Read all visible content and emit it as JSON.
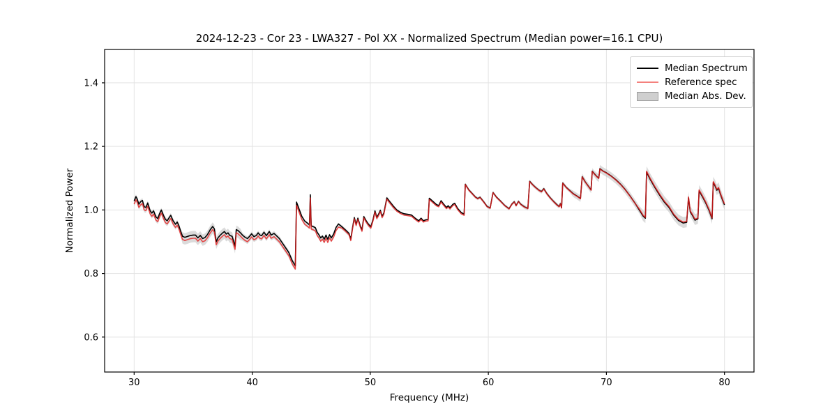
{
  "figure": {
    "title": "2024-12-23 - Cor 23 - LWA327 - Pol XX - Normalized Spectrum (Median power=16.1 CPU)",
    "xlabel": "Frequency (MHz)",
    "ylabel": "Normalized Power",
    "legend": [
      {
        "label": "Median Spectrum",
        "swatch": "line",
        "color": "#000000"
      },
      {
        "label": "Reference spec",
        "swatch": "line",
        "color": "#f4817d"
      },
      {
        "label": "Median Abs. Dev.",
        "swatch": "patch",
        "color": "#cfcfcf",
        "border": "#9e9e9e"
      }
    ]
  },
  "chart_data": {
    "type": "line",
    "title": "2024-12-23 - Cor 23 - LWA327 - Pol XX - Normalized Spectrum (Median power=16.1 CPU)",
    "xlabel": "Frequency (MHz)",
    "ylabel": "Normalized Power",
    "xlim": [
      27.5,
      82.5
    ],
    "ylim": [
      0.49,
      1.505
    ],
    "xticks": [
      30,
      40,
      50,
      60,
      70,
      80
    ],
    "xtick_labels": [
      "30",
      "40",
      "50",
      "60",
      "70",
      "80"
    ],
    "yticks": [
      0.6,
      0.8,
      1.0,
      1.2,
      1.4
    ],
    "ytick_labels": [
      "0.6",
      "0.8",
      "1.0",
      "1.2",
      "1.4"
    ],
    "grid": true,
    "grid_color": "#e3e3e3",
    "legend_position": "upper right",
    "series": [
      {
        "name": "Median Spectrum",
        "role": "median",
        "color": "#000000",
        "linewidth": 1.6,
        "points": [
          [
            30.0,
            1.028
          ],
          [
            30.15,
            1.042
          ],
          [
            30.25,
            1.035
          ],
          [
            30.4,
            1.018
          ],
          [
            30.55,
            1.026
          ],
          [
            30.7,
            1.03
          ],
          [
            30.85,
            1.01
          ],
          [
            31.0,
            1.008
          ],
          [
            31.15,
            1.022
          ],
          [
            31.35,
            0.998
          ],
          [
            31.5,
            0.99
          ],
          [
            31.65,
            0.997
          ],
          [
            31.85,
            0.978
          ],
          [
            32.0,
            0.973
          ],
          [
            32.15,
            0.988
          ],
          [
            32.3,
            1.0
          ],
          [
            32.5,
            0.982
          ],
          [
            32.65,
            0.97
          ],
          [
            32.8,
            0.966
          ],
          [
            32.95,
            0.975
          ],
          [
            33.1,
            0.983
          ],
          [
            33.3,
            0.966
          ],
          [
            33.5,
            0.955
          ],
          [
            33.65,
            0.962
          ],
          [
            33.8,
            0.95
          ],
          [
            33.95,
            0.932
          ],
          [
            34.1,
            0.917
          ],
          [
            34.3,
            0.914
          ],
          [
            34.55,
            0.917
          ],
          [
            34.8,
            0.92
          ],
          [
            35.0,
            0.921
          ],
          [
            35.2,
            0.921
          ],
          [
            35.4,
            0.912
          ],
          [
            35.6,
            0.92
          ],
          [
            35.8,
            0.91
          ],
          [
            36.0,
            0.913
          ],
          [
            36.2,
            0.922
          ],
          [
            36.45,
            0.938
          ],
          [
            36.65,
            0.948
          ],
          [
            36.8,
            0.94
          ],
          [
            36.95,
            0.9
          ],
          [
            37.1,
            0.912
          ],
          [
            37.3,
            0.921
          ],
          [
            37.5,
            0.928
          ],
          [
            37.65,
            0.932
          ],
          [
            37.8,
            0.924
          ],
          [
            37.95,
            0.928
          ],
          [
            38.1,
            0.92
          ],
          [
            38.3,
            0.917
          ],
          [
            38.45,
            0.898
          ],
          [
            38.55,
            0.886
          ],
          [
            38.65,
            0.938
          ],
          [
            38.8,
            0.935
          ],
          [
            39.0,
            0.928
          ],
          [
            39.2,
            0.92
          ],
          [
            39.4,
            0.914
          ],
          [
            39.6,
            0.91
          ],
          [
            39.8,
            0.918
          ],
          [
            39.95,
            0.925
          ],
          [
            40.15,
            0.916
          ],
          [
            40.35,
            0.92
          ],
          [
            40.5,
            0.928
          ],
          [
            40.65,
            0.921
          ],
          [
            40.8,
            0.919
          ],
          [
            41.0,
            0.93
          ],
          [
            41.2,
            0.919
          ],
          [
            41.45,
            0.932
          ],
          [
            41.6,
            0.921
          ],
          [
            41.85,
            0.926
          ],
          [
            42.05,
            0.919
          ],
          [
            42.3,
            0.91
          ],
          [
            42.7,
            0.888
          ],
          [
            43.1,
            0.866
          ],
          [
            43.4,
            0.84
          ],
          [
            43.65,
            0.824
          ],
          [
            43.75,
            1.025
          ],
          [
            44.0,
            1.0
          ],
          [
            44.2,
            0.98
          ],
          [
            44.45,
            0.965
          ],
          [
            44.7,
            0.958
          ],
          [
            44.85,
            0.953
          ],
          [
            44.92,
            1.048
          ],
          [
            45.0,
            0.95
          ],
          [
            45.2,
            0.947
          ],
          [
            45.35,
            0.944
          ],
          [
            45.5,
            0.93
          ],
          [
            45.65,
            0.922
          ],
          [
            45.8,
            0.912
          ],
          [
            45.95,
            0.918
          ],
          [
            46.1,
            0.908
          ],
          [
            46.25,
            0.921
          ],
          [
            46.4,
            0.908
          ],
          [
            46.55,
            0.922
          ],
          [
            46.7,
            0.912
          ],
          [
            46.9,
            0.925
          ],
          [
            47.1,
            0.945
          ],
          [
            47.3,
            0.956
          ],
          [
            47.6,
            0.947
          ],
          [
            47.9,
            0.937
          ],
          [
            48.2,
            0.926
          ],
          [
            48.35,
            0.908
          ],
          [
            48.5,
            0.945
          ],
          [
            48.65,
            0.976
          ],
          [
            48.8,
            0.955
          ],
          [
            48.95,
            0.974
          ],
          [
            49.15,
            0.95
          ],
          [
            49.3,
            0.937
          ],
          [
            49.45,
            0.979
          ],
          [
            49.65,
            0.966
          ],
          [
            49.85,
            0.955
          ],
          [
            50.05,
            0.947
          ],
          [
            50.25,
            0.972
          ],
          [
            50.4,
            0.997
          ],
          [
            50.55,
            0.977
          ],
          [
            50.7,
            0.986
          ],
          [
            50.85,
            0.999
          ],
          [
            51.0,
            0.98
          ],
          [
            51.15,
            0.99
          ],
          [
            51.4,
            1.038
          ],
          [
            51.65,
            1.026
          ],
          [
            51.95,
            1.012
          ],
          [
            52.25,
            1.0
          ],
          [
            52.55,
            0.993
          ],
          [
            52.85,
            0.988
          ],
          [
            53.2,
            0.986
          ],
          [
            53.5,
            0.984
          ],
          [
            53.8,
            0.974
          ],
          [
            54.1,
            0.966
          ],
          [
            54.3,
            0.974
          ],
          [
            54.5,
            0.966
          ],
          [
            54.7,
            0.969
          ],
          [
            54.9,
            0.97
          ],
          [
            55.0,
            1.037
          ],
          [
            55.3,
            1.027
          ],
          [
            55.6,
            1.017
          ],
          [
            55.8,
            1.014
          ],
          [
            56.0,
            1.029
          ],
          [
            56.2,
            1.019
          ],
          [
            56.45,
            1.008
          ],
          [
            56.6,
            1.013
          ],
          [
            56.75,
            1.007
          ],
          [
            57.0,
            1.018
          ],
          [
            57.15,
            1.021
          ],
          [
            57.4,
            1.005
          ],
          [
            57.7,
            0.992
          ],
          [
            57.95,
            0.987
          ],
          [
            58.05,
            1.081
          ],
          [
            58.35,
            1.063
          ],
          [
            58.65,
            1.051
          ],
          [
            58.9,
            1.041
          ],
          [
            59.1,
            1.036
          ],
          [
            59.3,
            1.04
          ],
          [
            59.6,
            1.026
          ],
          [
            59.9,
            1.011
          ],
          [
            60.15,
            1.006
          ],
          [
            60.4,
            1.055
          ],
          [
            60.7,
            1.04
          ],
          [
            61.0,
            1.029
          ],
          [
            61.4,
            1.014
          ],
          [
            61.75,
            1.004
          ],
          [
            62.0,
            1.019
          ],
          [
            62.2,
            1.026
          ],
          [
            62.35,
            1.014
          ],
          [
            62.55,
            1.027
          ],
          [
            62.75,
            1.018
          ],
          [
            63.05,
            1.01
          ],
          [
            63.35,
            1.005
          ],
          [
            63.5,
            1.09
          ],
          [
            63.75,
            1.08
          ],
          [
            64.0,
            1.071
          ],
          [
            64.3,
            1.062
          ],
          [
            64.5,
            1.058
          ],
          [
            64.7,
            1.067
          ],
          [
            64.95,
            1.052
          ],
          [
            65.25,
            1.038
          ],
          [
            65.55,
            1.026
          ],
          [
            65.85,
            1.015
          ],
          [
            66.0,
            1.011
          ],
          [
            66.1,
            1.02
          ],
          [
            66.2,
            1.007
          ],
          [
            66.3,
            1.085
          ],
          [
            66.6,
            1.071
          ],
          [
            66.9,
            1.061
          ],
          [
            67.2,
            1.051
          ],
          [
            67.5,
            1.044
          ],
          [
            67.8,
            1.036
          ],
          [
            67.95,
            1.105
          ],
          [
            68.2,
            1.089
          ],
          [
            68.45,
            1.076
          ],
          [
            68.7,
            1.063
          ],
          [
            68.8,
            1.122
          ],
          [
            69.0,
            1.113
          ],
          [
            69.2,
            1.105
          ],
          [
            69.35,
            1.1
          ],
          [
            69.45,
            1.13
          ],
          [
            69.7,
            1.123
          ],
          [
            70.0,
            1.117
          ],
          [
            70.4,
            1.107
          ],
          [
            70.8,
            1.095
          ],
          [
            71.2,
            1.081
          ],
          [
            71.6,
            1.064
          ],
          [
            72.0,
            1.044
          ],
          [
            72.4,
            1.023
          ],
          [
            72.8,
            0.999
          ],
          [
            73.1,
            0.981
          ],
          [
            73.3,
            0.974
          ],
          [
            73.4,
            1.119
          ],
          [
            73.7,
            1.097
          ],
          [
            74.1,
            1.071
          ],
          [
            74.5,
            1.047
          ],
          [
            74.9,
            1.025
          ],
          [
            75.3,
            1.008
          ],
          [
            75.7,
            0.984
          ],
          [
            76.1,
            0.967
          ],
          [
            76.5,
            0.959
          ],
          [
            76.8,
            0.961
          ],
          [
            76.95,
            1.038
          ],
          [
            77.1,
            0.994
          ],
          [
            77.3,
            0.982
          ],
          [
            77.5,
            0.968
          ],
          [
            77.75,
            0.972
          ],
          [
            77.85,
            1.06
          ],
          [
            78.1,
            1.044
          ],
          [
            78.4,
            1.023
          ],
          [
            78.7,
            0.998
          ],
          [
            78.95,
            0.972
          ],
          [
            79.05,
            1.086
          ],
          [
            79.2,
            1.076
          ],
          [
            79.35,
            1.062
          ],
          [
            79.5,
            1.068
          ],
          [
            79.65,
            1.05
          ],
          [
            79.85,
            1.03
          ],
          [
            80.0,
            1.016
          ]
        ]
      },
      {
        "name": "Reference spec",
        "role": "reference",
        "color": "#e61e1e",
        "opacity": 0.8,
        "linewidth": 1.6,
        "offset_from_median": [
          {
            "from": 27.5,
            "to": 47.5,
            "value": -0.01
          },
          {
            "from": 47.5,
            "to": 58.0,
            "value": -0.004
          },
          {
            "from": 58.0,
            "to": 72.5,
            "value": -0.001
          },
          {
            "from": 72.5,
            "to": 82.5,
            "value": 0.003
          }
        ]
      },
      {
        "name": "Median Abs. Dev.",
        "role": "band",
        "fill": "#bdbdbd",
        "opacity": 0.55,
        "halfwidth": [
          {
            "from": 27.5,
            "to": 34.0,
            "value": 0.012
          },
          {
            "from": 34.0,
            "to": 39.0,
            "value": 0.018
          },
          {
            "from": 39.0,
            "to": 43.5,
            "value": 0.012
          },
          {
            "from": 43.5,
            "to": 47.0,
            "value": 0.009
          },
          {
            "from": 47.0,
            "to": 52.0,
            "value": 0.007
          },
          {
            "from": 52.0,
            "to": 58.0,
            "value": 0.004
          },
          {
            "from": 58.0,
            "to": 63.0,
            "value": 0.005
          },
          {
            "from": 63.0,
            "to": 67.0,
            "value": 0.006
          },
          {
            "from": 67.0,
            "to": 69.0,
            "value": 0.01
          },
          {
            "from": 69.0,
            "to": 73.0,
            "value": 0.012
          },
          {
            "from": 73.0,
            "to": 82.5,
            "value": 0.017
          }
        ]
      }
    ]
  }
}
